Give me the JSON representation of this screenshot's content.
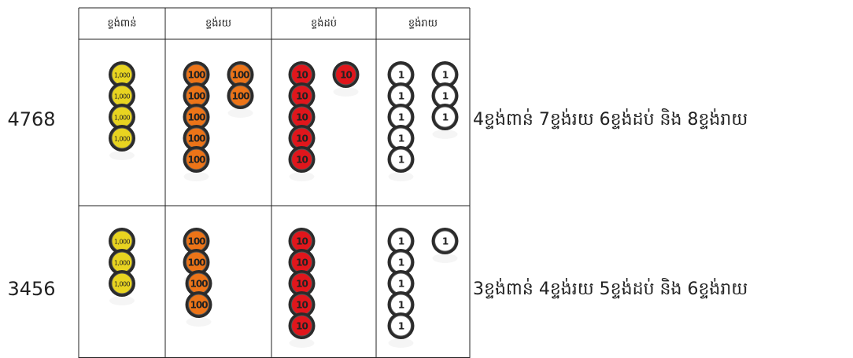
{
  "header": {
    "columns": [
      "ខ្ទង់ពាន់",
      "ខ្ទង់រយ",
      "ខ្ទង់ដប់",
      "ខ្ទង់រាយ"
    ]
  },
  "coins": [
    {
      "label": "1,000",
      "color": "#e8d420"
    },
    {
      "label": "100",
      "color": "#ec7418"
    },
    {
      "label": "10",
      "color": "#e0161c"
    },
    {
      "label": "1",
      "color": "#ffffff"
    }
  ],
  "rows": [
    {
      "number": "4768",
      "counts": [
        4,
        7,
        6,
        8
      ],
      "description": "4ខ្ទង់ពាន់ 7ខ្ទង់រយ 6ខ្ទង់ដប់ និង 8ខ្ទង់រាយ"
    },
    {
      "number": "3456",
      "counts": [
        3,
        4,
        5,
        6
      ],
      "description": "3ខ្ទង់ពាន់ 4ខ្ទង់រយ 5ខ្ទង់ដប់ និង 6ខ្ទង់រាយ"
    }
  ]
}
